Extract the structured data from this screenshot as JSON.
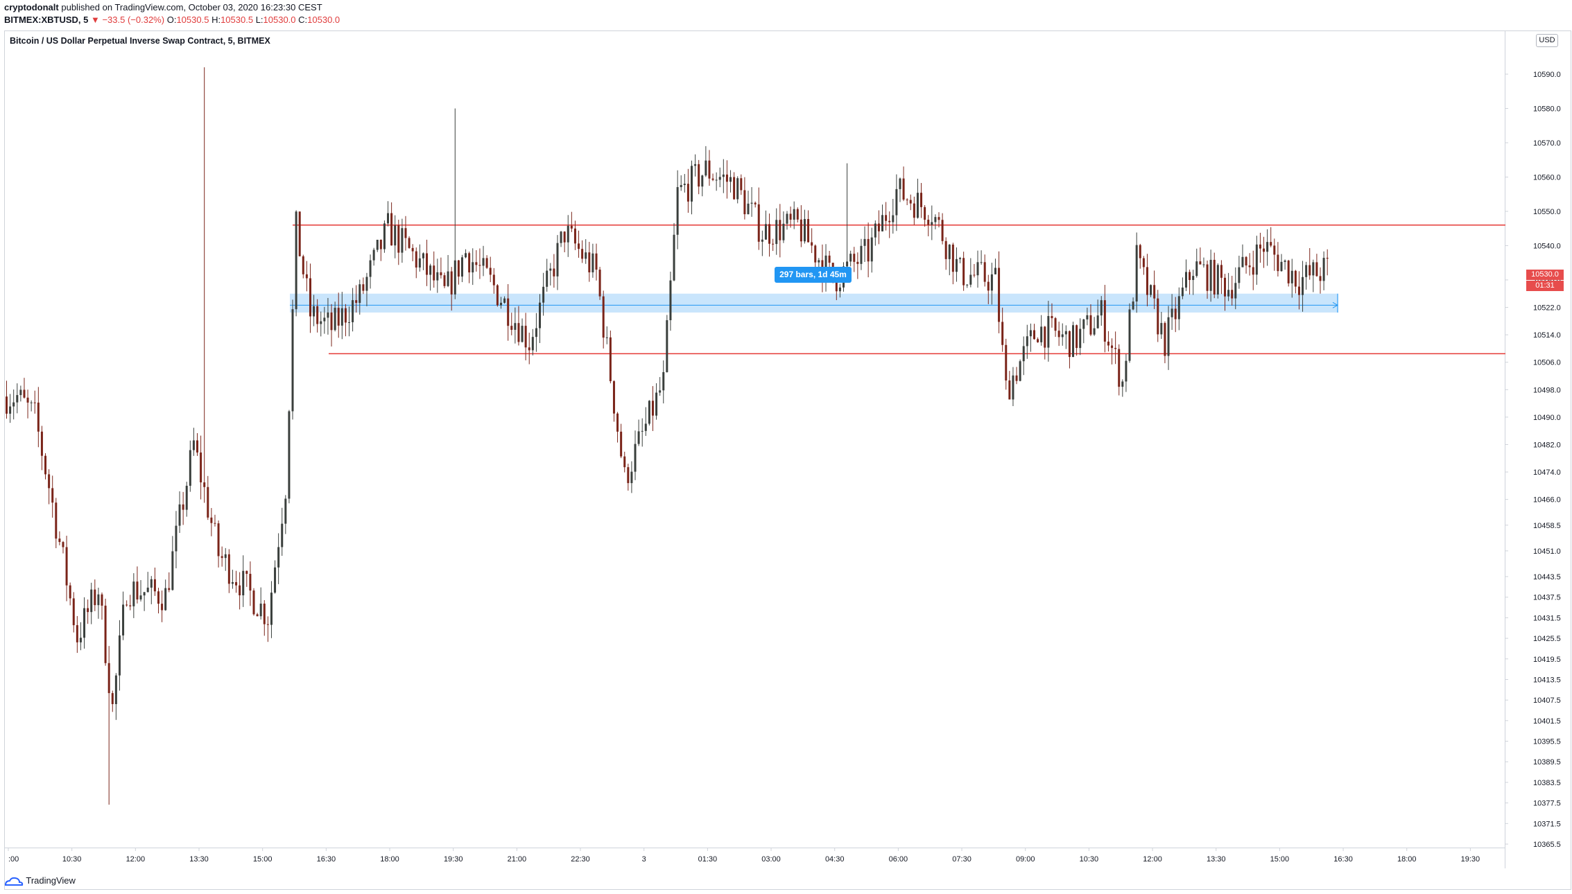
{
  "header": {
    "publisher": "cryptodonalt",
    "published_text": "published on TradingView.com, October 03, 2020 16:23:30 CEST",
    "symbol": "BITMEX:XBTUSD, 5",
    "change": "▼ −33.5 (−0.32%)",
    "o_label": "O:",
    "o_value": "10530.5",
    "h_label": "H:",
    "h_value": "10530.5",
    "l_label": "L:",
    "l_value": "10530.0",
    "c_label": "C:",
    "c_value": "10530.0"
  },
  "chart_title": "Bitcoin / US Dollar Perpetual Inverse Swap Contract, 5, BITMEX",
  "currency_badge": "USD",
  "measure_label": "297 bars, 1d 45m",
  "current_price_label": "10530.0",
  "countdown_label": "01:31",
  "footer": {
    "logo_text": "TradingView"
  },
  "colors": {
    "up": "#3a3f3c",
    "down": "#7a2419",
    "hline": "#e53935",
    "zone": "#bbdefb",
    "zone_line": "#2196f3",
    "accent": "#2962ff"
  },
  "chart_data": {
    "type": "candlestick",
    "symbol": "BITMEX:XBTUSD",
    "interval": "5",
    "ylim": [
      10363,
      10600
    ],
    "y_ticks": [
      "10590.0",
      "10580.0",
      "10570.0",
      "10560.0",
      "10550.0",
      "10540.0",
      "10530.0",
      "10522.0",
      "10514.0",
      "10506.0",
      "10498.0",
      "10490.0",
      "10482.0",
      "10474.0",
      "10466.0",
      "10458.5",
      "10451.0",
      "10443.5",
      "10437.5",
      "10431.5",
      "10425.5",
      "10419.5",
      "10413.5",
      "10407.5",
      "10401.5",
      "10395.5",
      "10389.5",
      "10383.5",
      "10377.5",
      "10371.5",
      "10365.5"
    ],
    "x_ticks": [
      ":00",
      "10:30",
      "12:00",
      "13:30",
      "15:00",
      "16:30",
      "18:00",
      "19:30",
      "21:00",
      "22:30",
      "3",
      "01:30",
      "03:00",
      "04:30",
      "06:00",
      "07:30",
      "09:00",
      "10:30",
      "12:00",
      "13:30",
      "15:00",
      "16:30",
      "18:00",
      "19:30"
    ],
    "horizontal_lines": [
      10546.0,
      10508.5
    ],
    "price_range_zone": {
      "from": 10520.5,
      "to": 10526.0,
      "start_label": "16:10",
      "end_label": "16:25"
    },
    "key_points": [
      {
        "t": ":00",
        "price": 10498
      },
      {
        "t": "10:30",
        "price": 10478
      },
      {
        "t": "12:00",
        "price": 10377
      },
      {
        "t": "13:30",
        "price": 10452
      },
      {
        "t": "15:00",
        "price": 10432
      },
      {
        "t": "16:00",
        "price": 10592
      },
      {
        "t": "16:30",
        "price": 10520
      },
      {
        "t": "18:00",
        "price": 10540
      },
      {
        "t": "19:30",
        "price": 10530
      },
      {
        "t": "21:00",
        "price": 10540
      },
      {
        "t": "22:30",
        "price": 10508
      },
      {
        "t": "3",
        "price": 10470
      },
      {
        "t": "01:30",
        "price": 10556
      },
      {
        "t": "03:00",
        "price": 10544
      },
      {
        "t": "04:30",
        "price": 10530
      },
      {
        "t": "06:00",
        "price": 10552
      },
      {
        "t": "07:30",
        "price": 10526
      },
      {
        "t": "09:00",
        "price": 10515
      },
      {
        "t": "10:30",
        "price": 10500
      },
      {
        "t": "12:00",
        "price": 10528
      },
      {
        "t": "13:30",
        "price": 10536
      },
      {
        "t": "15:00",
        "price": 10528
      },
      {
        "t": "16:30",
        "price": 10530
      }
    ]
  }
}
